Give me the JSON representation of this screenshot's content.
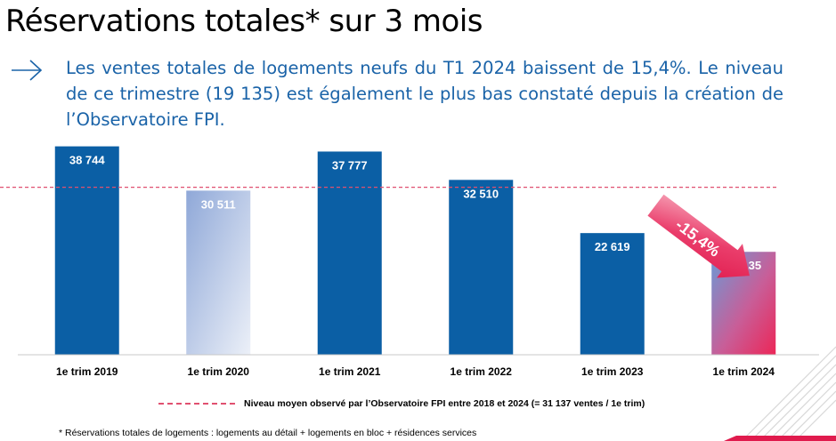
{
  "title": "Réservations totales* sur 3 mois",
  "intro": "Les ventes totales de logements neufs du T1 2024 baissent de 15,4%. Le niveau de ce trimestre (19 135) est également le plus bas constaté depuis la création de l’Observatoire FPI.",
  "icons": {
    "bullet": "right-arrow-icon"
  },
  "legend": "Niveau moyen observé par l’Observatoire FPI entre 2018 et 2024 (= 31 137 ventes / 1e trim)",
  "footnote": "* Réservations totales de logements : logements au détail + logements en bloc + résidences services",
  "colors": {
    "accent": "#1a63a8",
    "bar": "#0b5fa5",
    "highlight": "#e8275b",
    "average_line": "#e05070",
    "light_bar": "#8fa8d8"
  },
  "chart_data": {
    "type": "bar",
    "categories": [
      "1e trim 2019",
      "1e trim 2020",
      "1e trim 2021",
      "1e trim 2022",
      "1e trim 2023",
      "1e trim 2024"
    ],
    "values": [
      38744,
      30511,
      37777,
      32510,
      22619,
      19135
    ],
    "value_labels": [
      "38 744",
      "30 511",
      "37 777",
      "32 510",
      "22 619",
      "19 135"
    ],
    "bar_styles": [
      "solid",
      "gradient-light",
      "solid",
      "solid",
      "solid",
      "gradient-pink"
    ],
    "reference_line": {
      "value": 31137
    },
    "annotation": "-15,4%",
    "ylim": [
      0,
      40000
    ],
    "xlabel": "",
    "ylabel": ""
  }
}
